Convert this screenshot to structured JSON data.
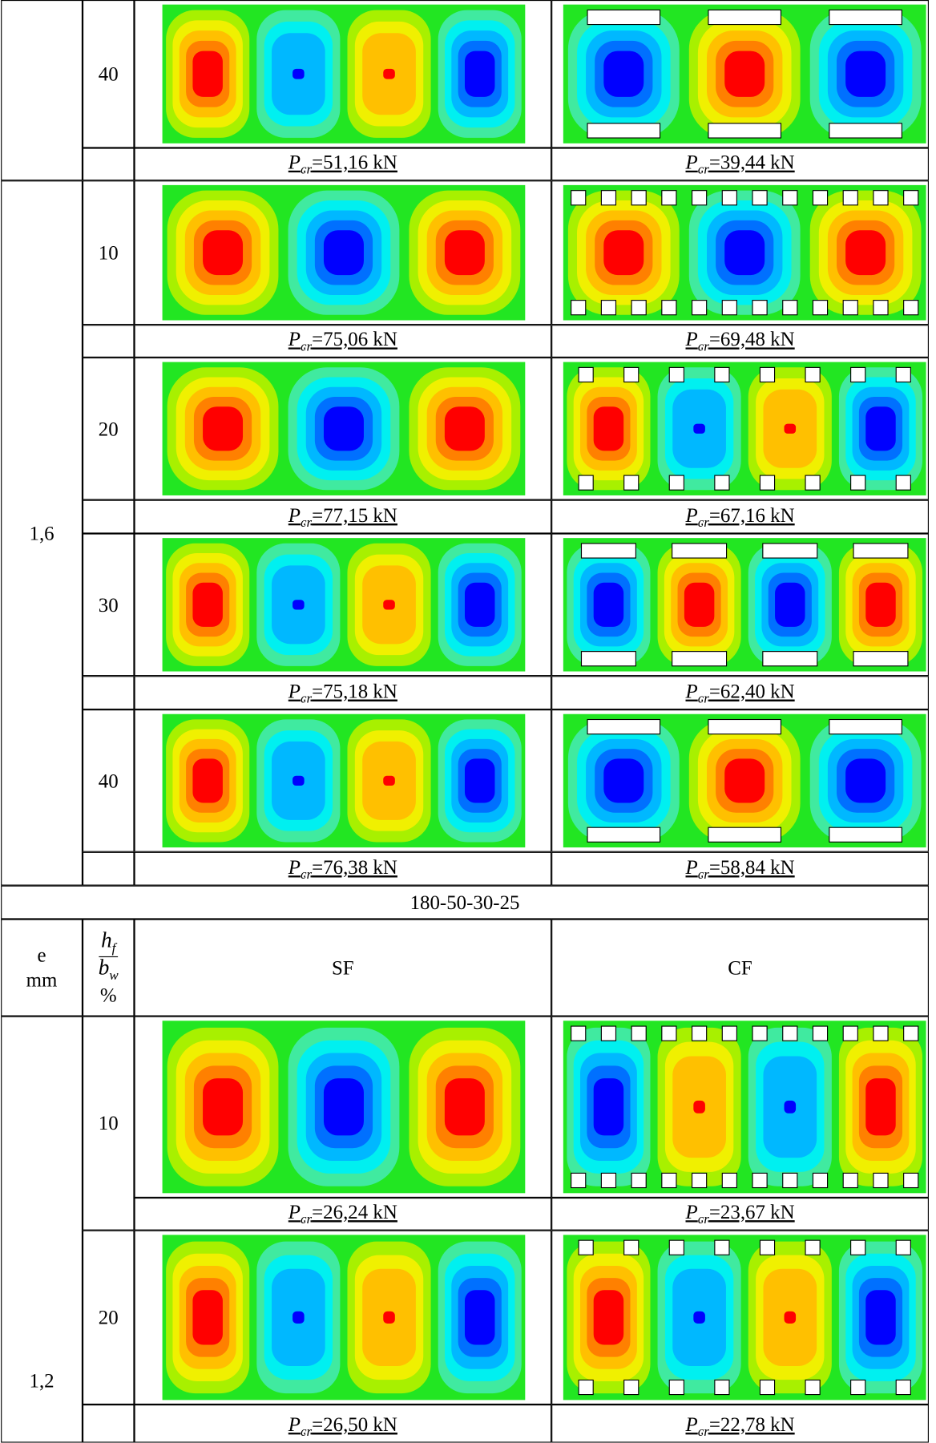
{
  "table": {
    "sections": [
      {
        "groups": [
          {
            "rows": [
              {
                "ratio": "40",
                "sf": {
                  "symbol": "P",
                  "subscript": "cr",
                  "text": "=51,16  kN"
                },
                "cf": {
                  "symbol": "P",
                  "subscript": "cr",
                  "text": "=39,44 kN"
                }
              }
            ]
          },
          {
            "e": "1,6",
            "rows": [
              {
                "ratio": "10",
                "sf": {
                  "symbol": "P",
                  "subscript": "cr",
                  "text": "=75,06 kN"
                },
                "cf": {
                  "symbol": "P",
                  "subscript": "cr",
                  "text": "=69,48 kN"
                }
              },
              {
                "ratio": "20",
                "sf": {
                  "symbol": "P",
                  "subscript": "cr",
                  "text": "=77,15 kN"
                },
                "cf": {
                  "symbol": "P",
                  "subscript": "cr",
                  "text": "=67,16 kN"
                }
              },
              {
                "ratio": "30",
                "sf": {
                  "symbol": "P",
                  "subscript": "cr",
                  "text": "=75,18 kN"
                },
                "cf": {
                  "symbol": "P",
                  "subscript": "cr",
                  "text": "=62,40 kN"
                }
              },
              {
                "ratio": "40",
                "sf": {
                  "symbol": "P",
                  "subscript": "cr",
                  "text": "=76,38 kN"
                },
                "cf": {
                  "symbol": "P",
                  "subscript": "cr",
                  "text": "=58,84 kN"
                }
              }
            ]
          }
        ]
      },
      {
        "title": "180-50-30-25",
        "header": {
          "e": "e",
          "e_unit": "mm",
          "ratio_num": "h",
          "ratio_num_sub": "f",
          "ratio_den": "b",
          "ratio_den_sub": "w",
          "ratio_unit": "%",
          "sf": "SF",
          "cf": "CF"
        },
        "groups": [
          {
            "e": "1,2",
            "rows": [
              {
                "ratio": "10",
                "sf": {
                  "symbol": "P",
                  "subscript": "cr",
                  "text": "=26,24 kN"
                },
                "cf": {
                  "symbol": "P",
                  "subscript": "cr",
                  "text": "=23,67 kN"
                }
              },
              {
                "ratio": "20",
                "sf": {
                  "symbol": "P",
                  "subscript": "cr",
                  "text": "=26,50 kN"
                },
                "cf": {
                  "symbol": "P",
                  "subscript": "cr",
                  "text": "=22,78 kN"
                }
              }
            ]
          }
        ]
      }
    ]
  }
}
